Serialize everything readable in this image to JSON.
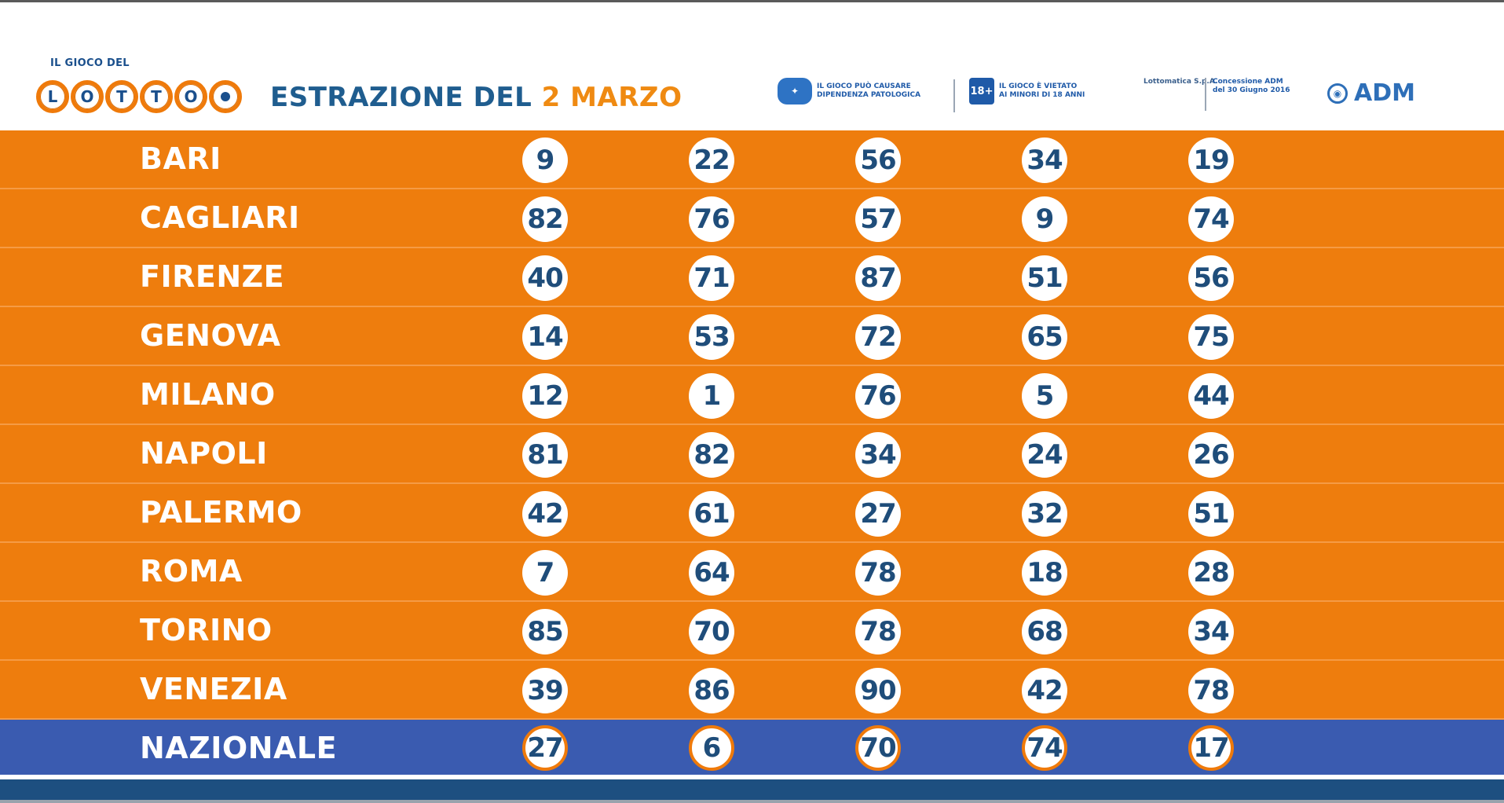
{
  "header": {
    "logo_top": "IL GIOCO DEL",
    "logo_letters": [
      "L",
      "O",
      "T",
      "T",
      "O"
    ],
    "title_prefix": "ESTRAZIONE DEL",
    "title_date": "2 MARZO",
    "notice_gambling_line1": "IL GIOCO PUÒ CAUSARE",
    "notice_gambling_line2": "DIPENDENZA PATOLOGICA",
    "notice_minors_badge": "18+",
    "notice_minors_line1": "IL GIOCO È VIETATO",
    "notice_minors_line2": "AI MINORI DI 18 ANNI",
    "concessionaire": "Lottomatica S.p.A.",
    "concession_line1": "Concessione ADM",
    "concession_line2": "del 30 Giugno 2016",
    "adm_label": "ADM"
  },
  "rows": [
    {
      "city": "BARI",
      "numbers": [
        "9",
        "22",
        "56",
        "34",
        "19"
      ]
    },
    {
      "city": "CAGLIARI",
      "numbers": [
        "82",
        "76",
        "57",
        "9",
        "74"
      ]
    },
    {
      "city": "FIRENZE",
      "numbers": [
        "40",
        "71",
        "87",
        "51",
        "56"
      ]
    },
    {
      "city": "GENOVA",
      "numbers": [
        "14",
        "53",
        "72",
        "65",
        "75"
      ]
    },
    {
      "city": "MILANO",
      "numbers": [
        "12",
        "1",
        "76",
        "5",
        "44"
      ]
    },
    {
      "city": "NAPOLI",
      "numbers": [
        "81",
        "82",
        "34",
        "24",
        "26"
      ]
    },
    {
      "city": "PALERMO",
      "numbers": [
        "42",
        "61",
        "27",
        "32",
        "51"
      ]
    },
    {
      "city": "ROMA",
      "numbers": [
        "7",
        "64",
        "78",
        "18",
        "28"
      ]
    },
    {
      "city": "TORINO",
      "numbers": [
        "85",
        "70",
        "78",
        "68",
        "34"
      ]
    },
    {
      "city": "VENEZIA",
      "numbers": [
        "39",
        "86",
        "90",
        "42",
        "78"
      ]
    },
    {
      "city": "NAZIONALE",
      "numbers": [
        "27",
        "6",
        "70",
        "74",
        "17"
      ]
    }
  ],
  "colors": {
    "row_orange": "#ee7d0d",
    "row_nazionale": "#3a5bb0",
    "title_blue": "#1f5d8f",
    "title_date_orange": "#ef8a12",
    "number_blue": "#1f4d7a"
  }
}
